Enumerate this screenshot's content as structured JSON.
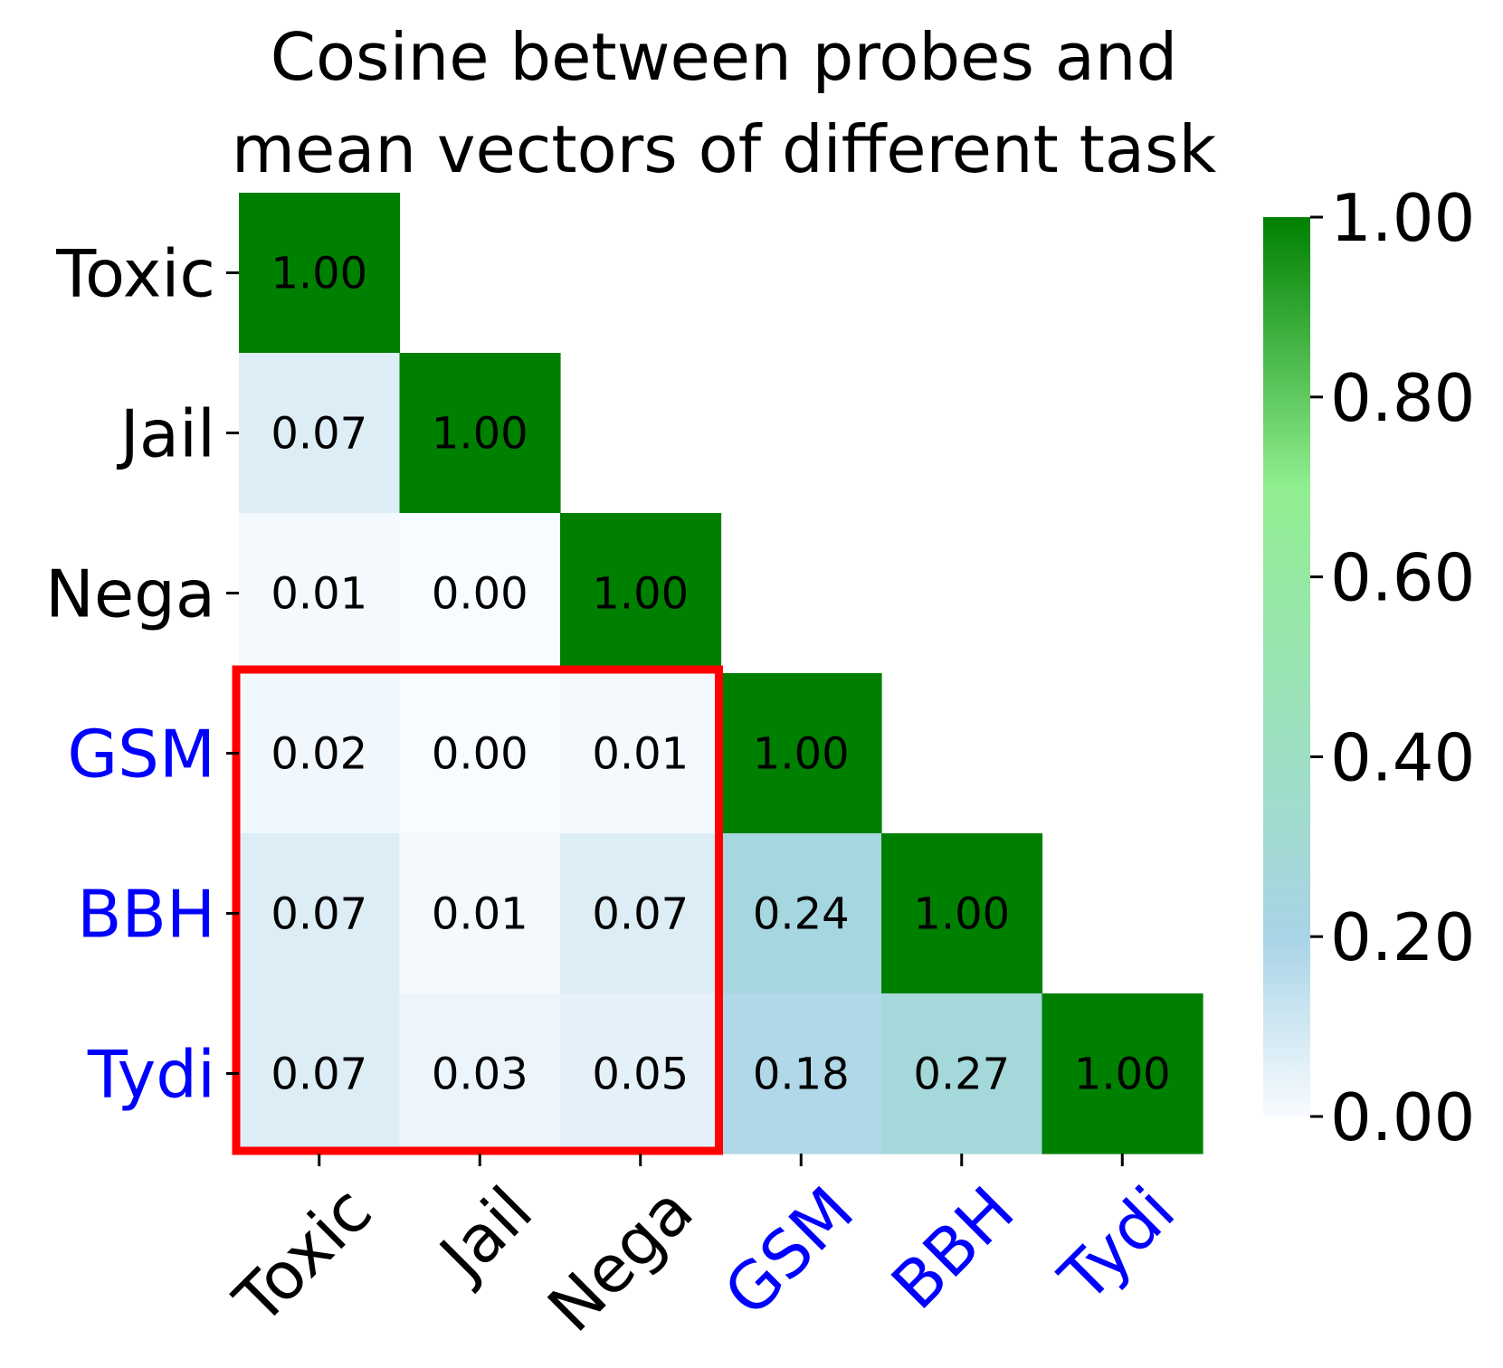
{
  "chart_data": {
    "type": "heatmap",
    "title": [
      "Cosine between probes and",
      "mean vectors of different task"
    ],
    "categories": [
      "Toxic",
      "Jail",
      "Nega",
      "GSM",
      "BBH",
      "Tydi"
    ],
    "category_colors": [
      "#000000",
      "#000000",
      "#000000",
      "#0000ff",
      "#0000ff",
      "#0000ff"
    ],
    "matrix": [
      [
        1.0,
        null,
        null,
        null,
        null,
        null
      ],
      [
        0.07,
        1.0,
        null,
        null,
        null,
        null
      ],
      [
        0.01,
        0.0,
        1.0,
        null,
        null,
        null
      ],
      [
        0.02,
        0.0,
        0.01,
        1.0,
        null,
        null
      ],
      [
        0.07,
        0.01,
        0.07,
        0.24,
        1.0,
        null
      ],
      [
        0.07,
        0.03,
        0.05,
        0.18,
        0.27,
        1.0
      ]
    ],
    "value_format": "0.00",
    "colormap": [
      "#f8fbff",
      "#a8d4e6",
      "#90ee90",
      "#008000"
    ],
    "colormap_stops": [
      0.0,
      0.2,
      0.7,
      1.0
    ],
    "colorbar": {
      "range": [
        0.0,
        1.0
      ],
      "ticks": [
        "0.00",
        "0.20",
        "0.40",
        "0.60",
        "0.80",
        "1.00"
      ]
    },
    "highlight": {
      "rows": [
        3,
        5
      ],
      "cols": [
        0,
        2
      ],
      "color": "#ff0000"
    }
  }
}
